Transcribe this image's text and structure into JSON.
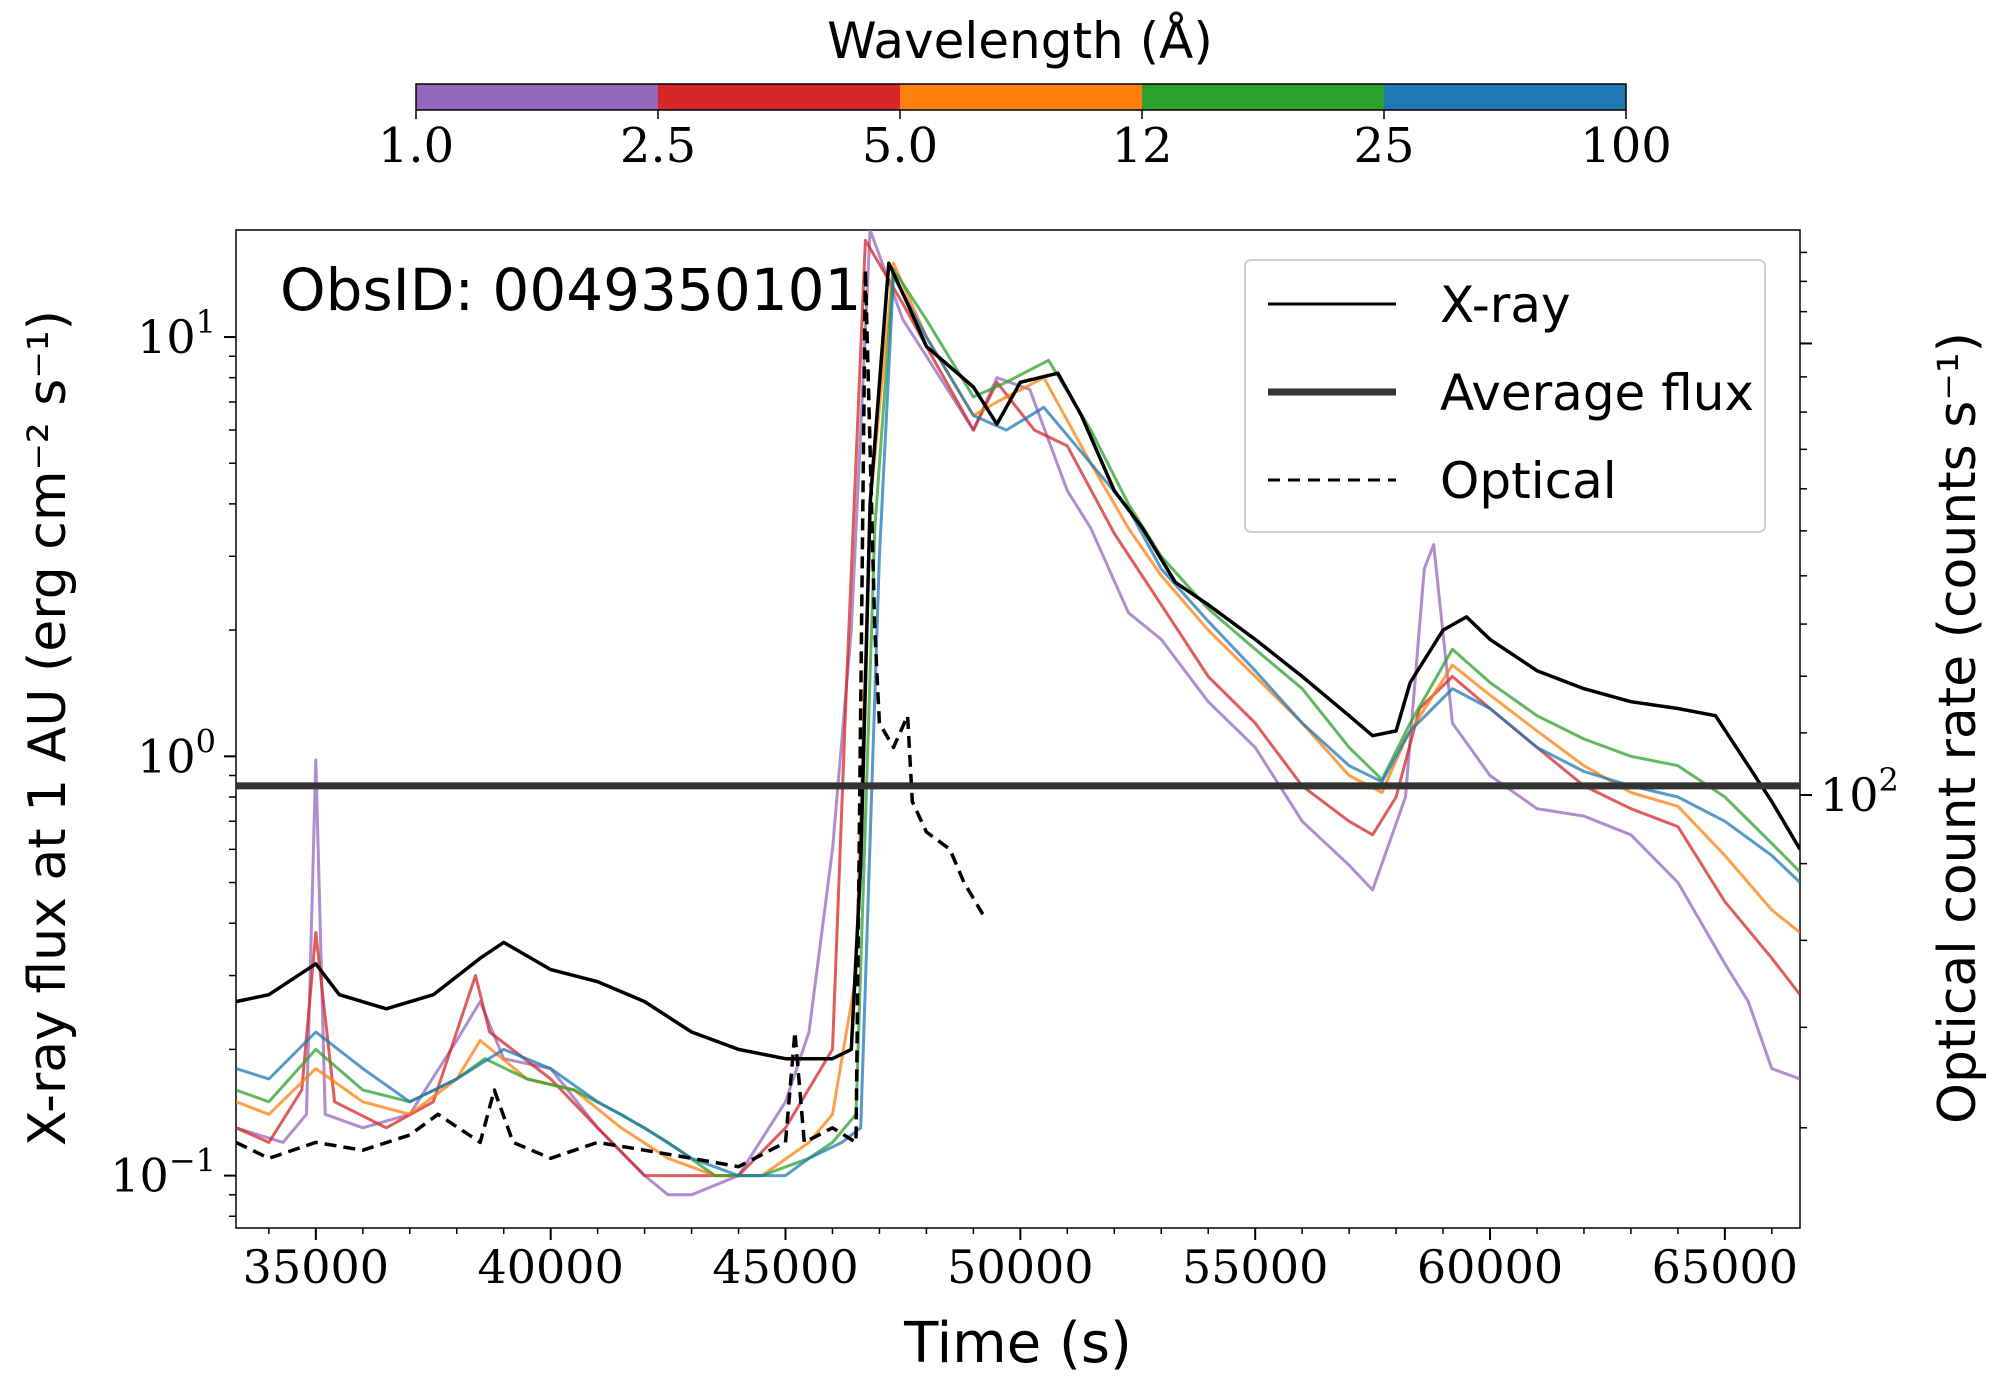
{
  "chart_data": {
    "type": "line",
    "obsid_label": "ObsID: 0049350101",
    "xlabel": "Time (s)",
    "ylabel_left": "X-ray flux at 1 AU (erg cm⁻² s⁻¹)",
    "ylabel_right": "Optical count rate (counts s⁻¹)",
    "xlim": [
      33300,
      66600
    ],
    "xticks": [
      35000,
      40000,
      45000,
      50000,
      55000,
      60000,
      65000
    ],
    "xtick_labels": [
      "35000",
      "40000",
      "45000",
      "50000",
      "55000",
      "60000",
      "65000"
    ],
    "ylim_log": [
      0.075,
      18
    ],
    "yticks_major": [
      {
        "value": 10,
        "base": "10",
        "exp": "1"
      },
      {
        "value": 1,
        "base": "10",
        "exp": "0"
      },
      {
        "value": 0.1,
        "base": "10",
        "exp": "−1"
      }
    ],
    "right_axis_ticks": [
      {
        "value": 100,
        "base": "10",
        "exp": "2"
      }
    ],
    "colorbar": {
      "title": "Wavelength (Å)",
      "tick_labels": [
        "1.0",
        "2.5",
        "5.0",
        "12",
        "25",
        "100"
      ],
      "colors": [
        "#9467bd",
        "#d62728",
        "#ff7f0e",
        "#2ca02c",
        "#1f77b4"
      ]
    },
    "average_flux": 0.85,
    "legend": [
      {
        "label": "X-ray",
        "style": "solid"
      },
      {
        "label": "Average flux",
        "style": "thick"
      },
      {
        "label": "Optical",
        "style": "dashed"
      }
    ],
    "series": [
      {
        "name": "X-ray",
        "color": "#000000",
        "points": [
          [
            33300,
            0.26
          ],
          [
            34000,
            0.27
          ],
          [
            35000,
            0.32
          ],
          [
            35500,
            0.27
          ],
          [
            36500,
            0.25
          ],
          [
            37500,
            0.27
          ],
          [
            38500,
            0.33
          ],
          [
            39000,
            0.36
          ],
          [
            40000,
            0.31
          ],
          [
            41000,
            0.29
          ],
          [
            42000,
            0.26
          ],
          [
            43000,
            0.22
          ],
          [
            44000,
            0.2
          ],
          [
            45000,
            0.19
          ],
          [
            46000,
            0.19
          ],
          [
            46400,
            0.2
          ],
          [
            46600,
            0.55
          ],
          [
            46800,
            4.0
          ],
          [
            47200,
            15.0
          ],
          [
            47600,
            12.0
          ],
          [
            48000,
            9.5
          ],
          [
            49000,
            7.6
          ],
          [
            49500,
            6.2
          ],
          [
            50000,
            7.8
          ],
          [
            50800,
            8.2
          ],
          [
            51300,
            6.5
          ],
          [
            52000,
            4.3
          ],
          [
            52600,
            3.5
          ],
          [
            53300,
            2.6
          ],
          [
            54000,
            2.3
          ],
          [
            55000,
            1.9
          ],
          [
            56000,
            1.55
          ],
          [
            57000,
            1.25
          ],
          [
            57500,
            1.12
          ],
          [
            58000,
            1.15
          ],
          [
            58300,
            1.5
          ],
          [
            59000,
            2.0
          ],
          [
            59500,
            2.15
          ],
          [
            60000,
            1.9
          ],
          [
            61000,
            1.6
          ],
          [
            62000,
            1.45
          ],
          [
            63000,
            1.35
          ],
          [
            64000,
            1.3
          ],
          [
            64800,
            1.25
          ],
          [
            65500,
            0.95
          ],
          [
            66000,
            0.78
          ],
          [
            66600,
            0.6
          ]
        ]
      },
      {
        "name": "1.0–2.5 Å",
        "color": "#9467bd",
        "points": [
          [
            33300,
            0.13
          ],
          [
            34300,
            0.12
          ],
          [
            34800,
            0.14
          ],
          [
            35000,
            0.98
          ],
          [
            35200,
            0.14
          ],
          [
            36000,
            0.13
          ],
          [
            37000,
            0.14
          ],
          [
            38000,
            0.21
          ],
          [
            38500,
            0.26
          ],
          [
            39000,
            0.19
          ],
          [
            40000,
            0.18
          ],
          [
            41000,
            0.13
          ],
          [
            42000,
            0.1
          ],
          [
            42500,
            0.09
          ],
          [
            43000,
            0.09
          ],
          [
            44000,
            0.1
          ],
          [
            45000,
            0.15
          ],
          [
            45500,
            0.22
          ],
          [
            46000,
            0.6
          ],
          [
            46400,
            2.0
          ],
          [
            46800,
            18.0
          ],
          [
            47500,
            11.0
          ],
          [
            48000,
            9.0
          ],
          [
            49000,
            6.0
          ],
          [
            49500,
            8.0
          ],
          [
            50200,
            7.5
          ],
          [
            51000,
            4.3
          ],
          [
            51500,
            3.5
          ],
          [
            52300,
            2.2
          ],
          [
            53000,
            1.9
          ],
          [
            54000,
            1.35
          ],
          [
            55000,
            1.05
          ],
          [
            56000,
            0.7
          ],
          [
            57000,
            0.55
          ],
          [
            57500,
            0.48
          ],
          [
            58200,
            0.8
          ],
          [
            58600,
            2.8
          ],
          [
            58800,
            3.2
          ],
          [
            59200,
            1.2
          ],
          [
            60000,
            0.9
          ],
          [
            61000,
            0.75
          ],
          [
            62000,
            0.72
          ],
          [
            63000,
            0.65
          ],
          [
            64000,
            0.5
          ],
          [
            65000,
            0.32
          ],
          [
            65500,
            0.26
          ],
          [
            66000,
            0.18
          ],
          [
            66600,
            0.17
          ]
        ]
      },
      {
        "name": "2.5–5.0 Å",
        "color": "#d62728",
        "points": [
          [
            33300,
            0.13
          ],
          [
            34000,
            0.12
          ],
          [
            34700,
            0.16
          ],
          [
            35000,
            0.38
          ],
          [
            35400,
            0.15
          ],
          [
            36500,
            0.13
          ],
          [
            37500,
            0.15
          ],
          [
            38400,
            0.3
          ],
          [
            38700,
            0.22
          ],
          [
            40000,
            0.17
          ],
          [
            41000,
            0.13
          ],
          [
            42000,
            0.1
          ],
          [
            43000,
            0.1
          ],
          [
            44000,
            0.1
          ],
          [
            45000,
            0.13
          ],
          [
            46000,
            0.2
          ],
          [
            46300,
            1.5
          ],
          [
            46700,
            17.0
          ],
          [
            47500,
            12.0
          ],
          [
            48000,
            9.5
          ],
          [
            49000,
            6.0
          ],
          [
            49500,
            7.8
          ],
          [
            50300,
            6.0
          ],
          [
            51000,
            5.5
          ],
          [
            52000,
            3.4
          ],
          [
            53000,
            2.3
          ],
          [
            54000,
            1.55
          ],
          [
            55000,
            1.2
          ],
          [
            56000,
            0.85
          ],
          [
            57000,
            0.7
          ],
          [
            57500,
            0.65
          ],
          [
            58000,
            0.8
          ],
          [
            58500,
            1.3
          ],
          [
            59200,
            1.55
          ],
          [
            60000,
            1.3
          ],
          [
            61000,
            1.05
          ],
          [
            62000,
            0.85
          ],
          [
            63000,
            0.75
          ],
          [
            64000,
            0.68
          ],
          [
            65000,
            0.45
          ],
          [
            66000,
            0.33
          ],
          [
            66600,
            0.27
          ]
        ]
      },
      {
        "name": "5.0–12 Å",
        "color": "#ff7f0e",
        "points": [
          [
            33300,
            0.15
          ],
          [
            34000,
            0.14
          ],
          [
            35000,
            0.18
          ],
          [
            36000,
            0.15
          ],
          [
            37000,
            0.14
          ],
          [
            38000,
            0.17
          ],
          [
            38500,
            0.21
          ],
          [
            39500,
            0.17
          ],
          [
            40500,
            0.16
          ],
          [
            41500,
            0.13
          ],
          [
            42500,
            0.11
          ],
          [
            43500,
            0.1
          ],
          [
            44500,
            0.1
          ],
          [
            45500,
            0.12
          ],
          [
            46000,
            0.14
          ],
          [
            46500,
            0.3
          ],
          [
            46800,
            4.0
          ],
          [
            47300,
            15.0
          ],
          [
            48000,
            10.0
          ],
          [
            49000,
            6.5
          ],
          [
            49500,
            7.0
          ],
          [
            50500,
            8.0
          ],
          [
            51500,
            5.0
          ],
          [
            52300,
            3.5
          ],
          [
            53000,
            2.7
          ],
          [
            54000,
            2.0
          ],
          [
            55000,
            1.55
          ],
          [
            56000,
            1.2
          ],
          [
            57000,
            0.9
          ],
          [
            57700,
            0.82
          ],
          [
            58200,
            1.1
          ],
          [
            59200,
            1.65
          ],
          [
            60000,
            1.4
          ],
          [
            61000,
            1.15
          ],
          [
            62000,
            0.95
          ],
          [
            63000,
            0.82
          ],
          [
            64000,
            0.76
          ],
          [
            65000,
            0.58
          ],
          [
            66000,
            0.43
          ],
          [
            66600,
            0.38
          ]
        ]
      },
      {
        "name": "12–25 Å",
        "color": "#2ca02c",
        "points": [
          [
            33300,
            0.16
          ],
          [
            34000,
            0.15
          ],
          [
            35000,
            0.2
          ],
          [
            36000,
            0.16
          ],
          [
            37000,
            0.15
          ],
          [
            38000,
            0.17
          ],
          [
            38600,
            0.19
          ],
          [
            39500,
            0.17
          ],
          [
            40500,
            0.16
          ],
          [
            41500,
            0.14
          ],
          [
            42500,
            0.12
          ],
          [
            43500,
            0.1
          ],
          [
            44500,
            0.1
          ],
          [
            45500,
            0.11
          ],
          [
            46000,
            0.12
          ],
          [
            46500,
            0.14
          ],
          [
            46900,
            3.5
          ],
          [
            47300,
            14.5
          ],
          [
            48000,
            11.0
          ],
          [
            49000,
            7.2
          ],
          [
            49700,
            7.8
          ],
          [
            50600,
            8.8
          ],
          [
            51500,
            6.0
          ],
          [
            52300,
            4.0
          ],
          [
            53000,
            3.0
          ],
          [
            54000,
            2.25
          ],
          [
            55000,
            1.8
          ],
          [
            56000,
            1.45
          ],
          [
            57000,
            1.05
          ],
          [
            57700,
            0.88
          ],
          [
            58300,
            1.2
          ],
          [
            59200,
            1.8
          ],
          [
            60000,
            1.5
          ],
          [
            61000,
            1.25
          ],
          [
            62000,
            1.1
          ],
          [
            63000,
            1.0
          ],
          [
            64000,
            0.95
          ],
          [
            65000,
            0.8
          ],
          [
            66000,
            0.62
          ],
          [
            66600,
            0.53
          ]
        ]
      },
      {
        "name": "25–100 Å",
        "color": "#1f77b4",
        "points": [
          [
            33300,
            0.18
          ],
          [
            34000,
            0.17
          ],
          [
            35000,
            0.22
          ],
          [
            36000,
            0.18
          ],
          [
            37000,
            0.15
          ],
          [
            38000,
            0.17
          ],
          [
            39000,
            0.2
          ],
          [
            40000,
            0.18
          ],
          [
            41000,
            0.15
          ],
          [
            42000,
            0.13
          ],
          [
            43000,
            0.11
          ],
          [
            44000,
            0.1
          ],
          [
            45000,
            0.1
          ],
          [
            45500,
            0.11
          ],
          [
            46200,
            0.12
          ],
          [
            46600,
            0.13
          ],
          [
            47000,
            3.0
          ],
          [
            47300,
            14.0
          ],
          [
            48000,
            10.0
          ],
          [
            49000,
            6.5
          ],
          [
            49700,
            6.0
          ],
          [
            50500,
            6.8
          ],
          [
            51500,
            5.0
          ],
          [
            52300,
            3.9
          ],
          [
            53000,
            2.8
          ],
          [
            54000,
            2.1
          ],
          [
            55000,
            1.6
          ],
          [
            56000,
            1.2
          ],
          [
            57000,
            0.95
          ],
          [
            57700,
            0.87
          ],
          [
            58300,
            1.15
          ],
          [
            59200,
            1.45
          ],
          [
            60000,
            1.3
          ],
          [
            61000,
            1.05
          ],
          [
            62000,
            0.92
          ],
          [
            63000,
            0.85
          ],
          [
            64000,
            0.8
          ],
          [
            65000,
            0.7
          ],
          [
            66000,
            0.58
          ],
          [
            66600,
            0.5
          ]
        ]
      },
      {
        "name": "Optical",
        "color": "#000000",
        "dashed": true,
        "points": [
          [
            33300,
            0.12
          ],
          [
            34000,
            0.11
          ],
          [
            35000,
            0.12
          ],
          [
            36000,
            0.115
          ],
          [
            37000,
            0.125
          ],
          [
            37600,
            0.14
          ],
          [
            38500,
            0.12
          ],
          [
            38800,
            0.16
          ],
          [
            39200,
            0.12
          ],
          [
            40000,
            0.11
          ],
          [
            41000,
            0.12
          ],
          [
            42000,
            0.115
          ],
          [
            43000,
            0.11
          ],
          [
            44000,
            0.105
          ],
          [
            45000,
            0.12
          ],
          [
            45200,
            0.22
          ],
          [
            45400,
            0.12
          ],
          [
            46000,
            0.13
          ],
          [
            46500,
            0.12
          ],
          [
            46700,
            14.5
          ],
          [
            46900,
            2.0
          ],
          [
            47000,
            1.2
          ],
          [
            47300,
            1.05
          ],
          [
            47600,
            1.25
          ],
          [
            47700,
            0.78
          ],
          [
            48000,
            0.66
          ],
          [
            48500,
            0.6
          ],
          [
            48800,
            0.5
          ],
          [
            49200,
            0.42
          ]
        ]
      }
    ]
  }
}
